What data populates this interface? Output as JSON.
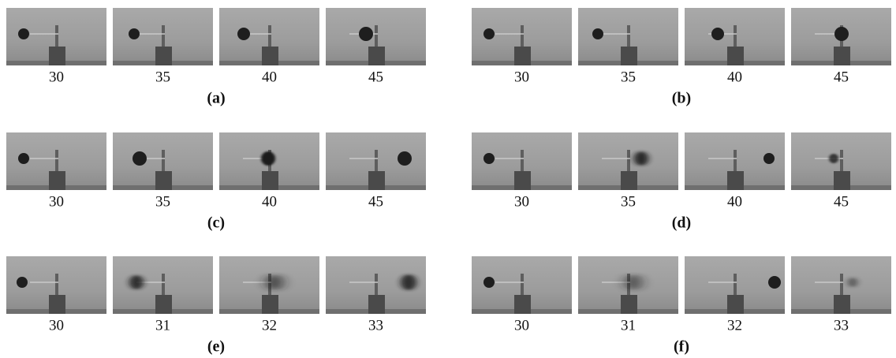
{
  "panels": [
    {
      "label": "(a)",
      "frames": [
        30,
        35,
        40,
        45
      ]
    },
    {
      "label": "(b)",
      "frames": [
        30,
        35,
        40,
        45
      ]
    },
    {
      "label": "(c)",
      "frames": [
        30,
        35,
        40,
        45
      ]
    },
    {
      "label": "(d)",
      "frames": [
        30,
        35,
        40,
        45
      ]
    },
    {
      "label": "(e)",
      "frames": [
        30,
        31,
        32,
        33
      ]
    },
    {
      "label": "(f)",
      "frames": [
        30,
        31,
        32,
        33
      ]
    }
  ]
}
